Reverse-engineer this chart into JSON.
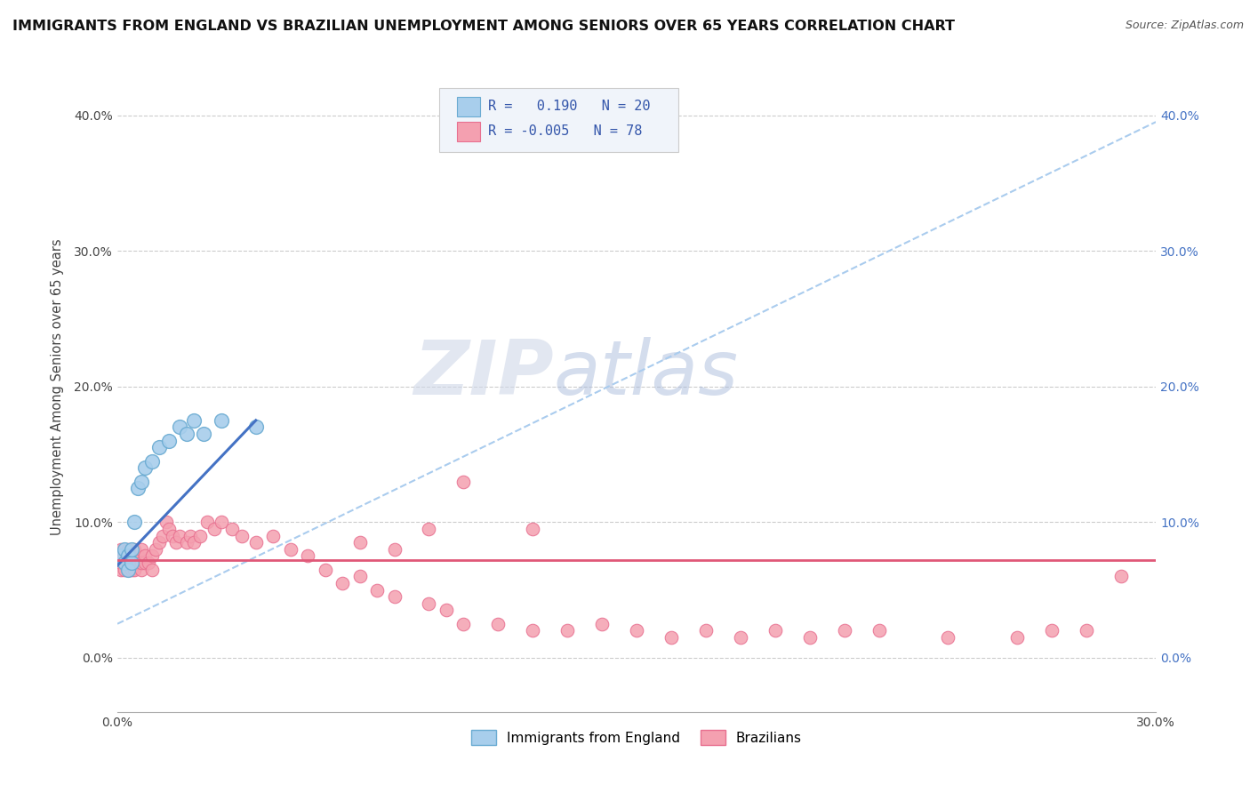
{
  "title": "IMMIGRANTS FROM ENGLAND VS BRAZILIAN UNEMPLOYMENT AMONG SENIORS OVER 65 YEARS CORRELATION CHART",
  "source": "Source: ZipAtlas.com",
  "ylabel": "Unemployment Among Seniors over 65 years",
  "xlim": [
    0.0,
    0.3
  ],
  "ylim": [
    -0.04,
    0.44
  ],
  "x_ticks": [
    0.0,
    0.05,
    0.1,
    0.15,
    0.2,
    0.25,
    0.3
  ],
  "x_tick_labels": [
    "0.0%",
    "",
    "",
    "",
    "",
    "",
    "30.0%"
  ],
  "y_ticks": [
    0.0,
    0.1,
    0.2,
    0.3,
    0.4
  ],
  "y_tick_labels": [
    "0.0%",
    "10.0%",
    "20.0%",
    "30.0%",
    "40.0%"
  ],
  "right_y_tick_labels": [
    "0.0%",
    "10.0%",
    "20.0%",
    "30.0%",
    "40.0%"
  ],
  "r_england": 0.19,
  "n_england": 20,
  "r_brazil": -0.005,
  "n_brazil": 78,
  "england_color": "#A8CEEC",
  "brazil_color": "#F4A0B0",
  "england_edge_color": "#6aabd2",
  "brazil_edge_color": "#e87090",
  "england_line_color": "#4472C4",
  "brazil_line_color": "#E05878",
  "dashed_line_color": "#AACCEE",
  "watermark_zip": "ZIP",
  "watermark_atlas": "atlas",
  "england_x": [
    0.001,
    0.002,
    0.002,
    0.003,
    0.003,
    0.004,
    0.004,
    0.005,
    0.006,
    0.007,
    0.008,
    0.01,
    0.012,
    0.015,
    0.018,
    0.02,
    0.022,
    0.025,
    0.03,
    0.04
  ],
  "england_y": [
    0.075,
    0.07,
    0.08,
    0.065,
    0.075,
    0.07,
    0.08,
    0.1,
    0.125,
    0.13,
    0.14,
    0.145,
    0.155,
    0.16,
    0.17,
    0.165,
    0.175,
    0.165,
    0.175,
    0.17
  ],
  "brazil_x": [
    0.001,
    0.001,
    0.001,
    0.001,
    0.002,
    0.002,
    0.002,
    0.003,
    0.003,
    0.003,
    0.003,
    0.004,
    0.004,
    0.004,
    0.005,
    0.005,
    0.005,
    0.006,
    0.006,
    0.007,
    0.007,
    0.007,
    0.008,
    0.008,
    0.009,
    0.01,
    0.01,
    0.011,
    0.012,
    0.013,
    0.014,
    0.015,
    0.016,
    0.017,
    0.018,
    0.02,
    0.021,
    0.022,
    0.024,
    0.026,
    0.028,
    0.03,
    0.033,
    0.036,
    0.04,
    0.045,
    0.05,
    0.055,
    0.06,
    0.065,
    0.07,
    0.075,
    0.08,
    0.09,
    0.095,
    0.1,
    0.11,
    0.12,
    0.13,
    0.14,
    0.15,
    0.16,
    0.17,
    0.18,
    0.19,
    0.2,
    0.21,
    0.22,
    0.24,
    0.26,
    0.27,
    0.28,
    0.12,
    0.1,
    0.09,
    0.08,
    0.07,
    0.29
  ],
  "brazil_y": [
    0.065,
    0.07,
    0.075,
    0.08,
    0.065,
    0.07,
    0.075,
    0.065,
    0.07,
    0.075,
    0.08,
    0.065,
    0.07,
    0.075,
    0.065,
    0.07,
    0.08,
    0.07,
    0.075,
    0.065,
    0.07,
    0.08,
    0.07,
    0.075,
    0.07,
    0.065,
    0.075,
    0.08,
    0.085,
    0.09,
    0.1,
    0.095,
    0.09,
    0.085,
    0.09,
    0.085,
    0.09,
    0.085,
    0.09,
    0.1,
    0.095,
    0.1,
    0.095,
    0.09,
    0.085,
    0.09,
    0.08,
    0.075,
    0.065,
    0.055,
    0.06,
    0.05,
    0.045,
    0.04,
    0.035,
    0.025,
    0.025,
    0.02,
    0.02,
    0.025,
    0.02,
    0.015,
    0.02,
    0.015,
    0.02,
    0.015,
    0.02,
    0.02,
    0.015,
    0.015,
    0.02,
    0.02,
    0.095,
    0.13,
    0.095,
    0.08,
    0.085,
    0.06
  ],
  "eng_line_x0": 0.0,
  "eng_line_y0": 0.068,
  "eng_line_x1": 0.04,
  "eng_line_y1": 0.175,
  "dashed_line_x0": 0.0,
  "dashed_line_y0": 0.025,
  "dashed_line_x1": 0.3,
  "dashed_line_y1": 0.395,
  "brazil_line_y": 0.072
}
